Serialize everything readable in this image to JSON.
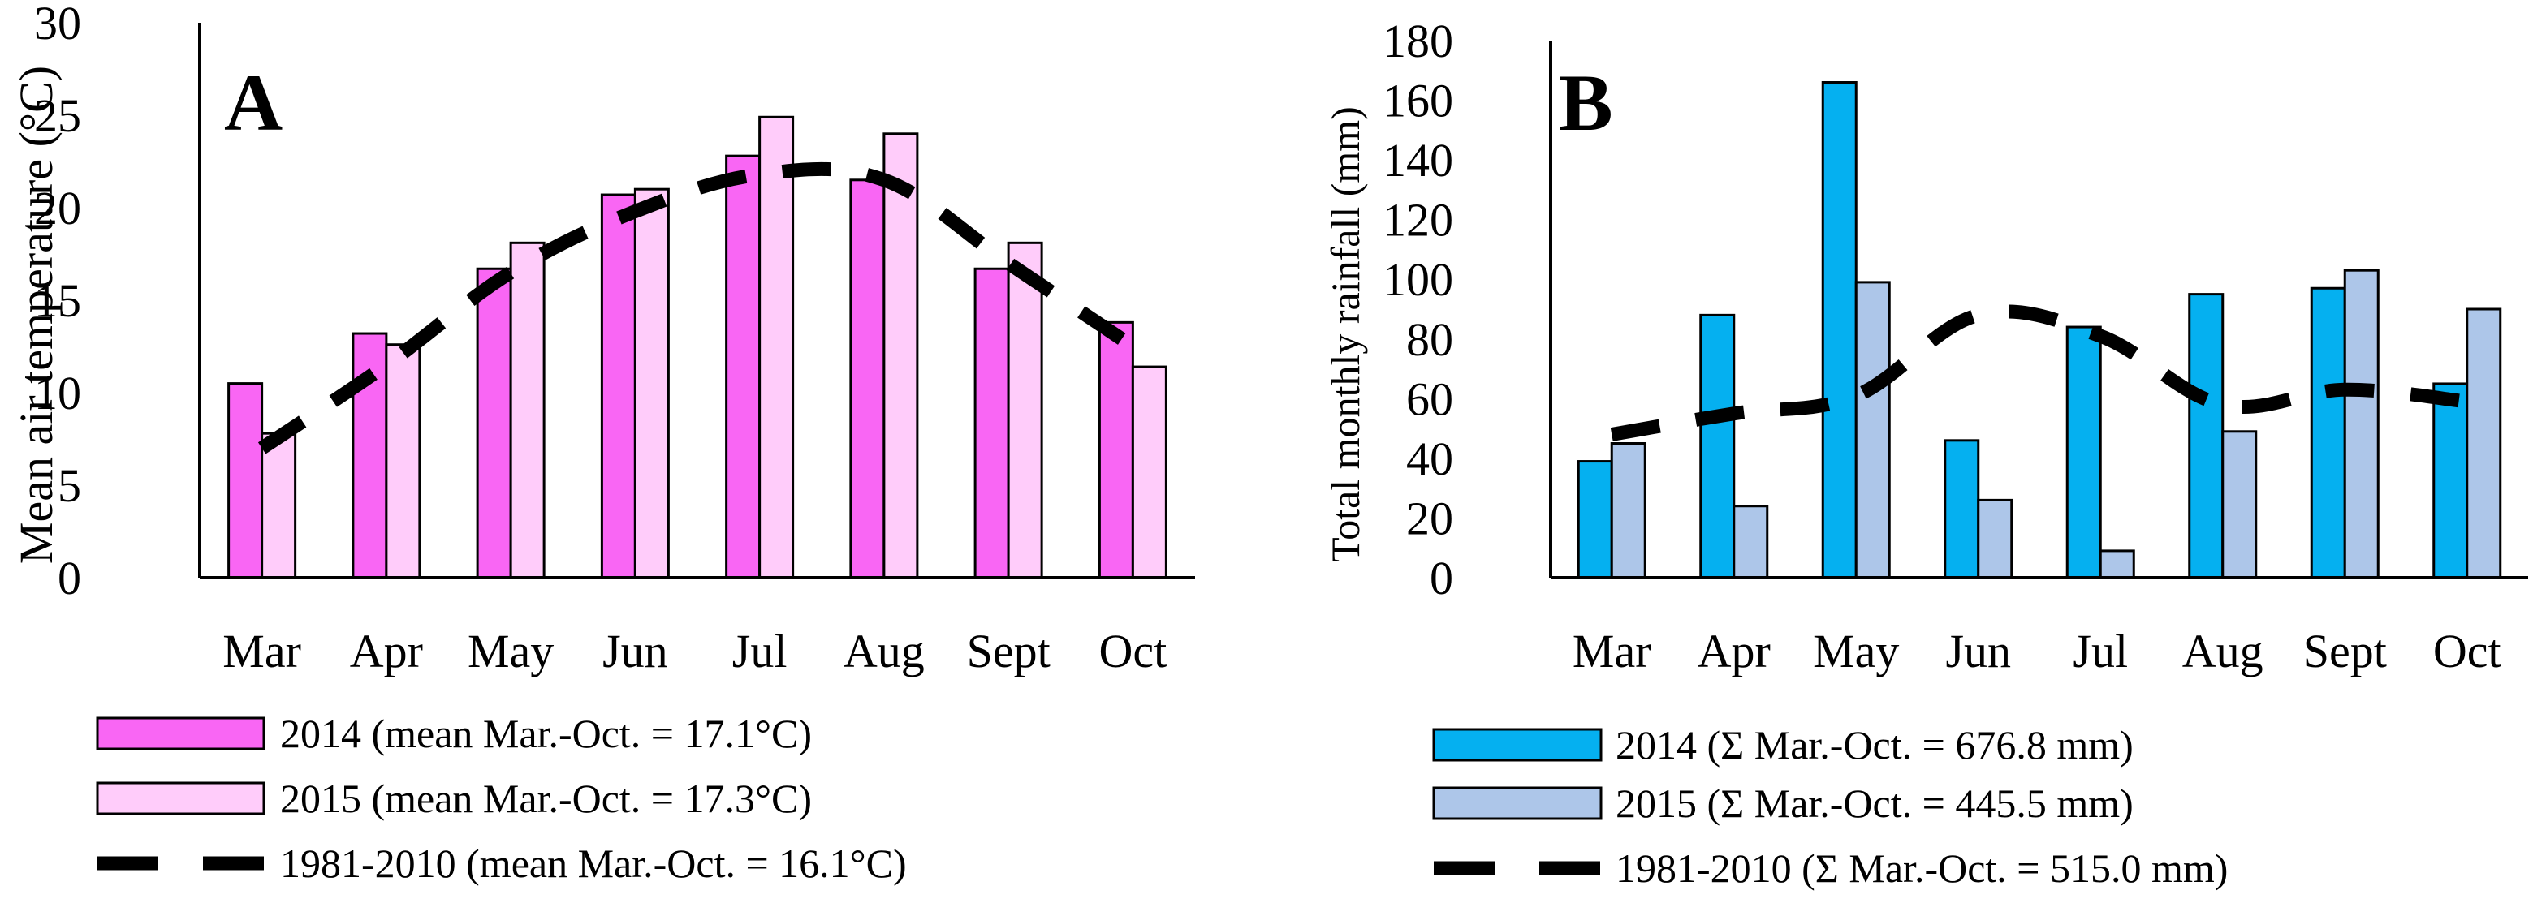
{
  "chart_data": [
    {
      "type": "bar",
      "panel": "A",
      "ylabel": "Mean air temperature (°C)",
      "ylim": [
        0,
        30
      ],
      "yticks": [
        "0",
        "5",
        "10",
        "15",
        "20",
        "25",
        "30"
      ],
      "categories": [
        "Mar",
        "Apr",
        "May",
        "Jun",
        "Jul",
        "Aug",
        "Sept",
        "Oct"
      ],
      "series": [
        {
          "name": "2014 (mean Mar.-Oct. = 17.1°C)",
          "kind": "bar",
          "color": "#f966f4",
          "values": [
            10.5,
            13.2,
            16.7,
            20.7,
            22.8,
            21.5,
            16.7,
            13.8
          ]
        },
        {
          "name": "2015 (mean Mar.-Oct. = 17.3°C)",
          "kind": "bar",
          "color": "#ffccfa",
          "values": [
            7.8,
            12.6,
            18.1,
            21.0,
            24.9,
            24.0,
            18.1,
            11.4
          ]
        },
        {
          "name": "1981-2010 (mean Mar.-Oct. = 16.1°C)",
          "kind": "line",
          "color": "#000000",
          "values": [
            7.0,
            11.5,
            16.5,
            19.8,
            21.8,
            21.5,
            17.0,
            12.5
          ]
        }
      ]
    },
    {
      "type": "bar",
      "panel": "B",
      "ylabel": "Total monthly rainfall (mm)",
      "ylim": [
        0,
        180
      ],
      "yticks": [
        "0",
        "20",
        "40",
        "60",
        "80",
        "100",
        "120",
        "140",
        "160",
        "180"
      ],
      "categories": [
        "Mar",
        "Apr",
        "May",
        "Jun",
        "Jul",
        "Aug",
        "Sept",
        "Oct"
      ],
      "series": [
        {
          "name": "2014 (Σ Mar.-Oct. = 676.8 mm)",
          "kind": "bar",
          "color": "#05b0f0",
          "values": [
            39,
            88,
            166,
            46,
            84,
            95,
            97,
            65
          ]
        },
        {
          "name": "2015 (Σ Mar.-Oct. = 445.5 mm)",
          "kind": "bar",
          "color": "#adc6e9",
          "values": [
            45,
            24,
            99,
            26,
            9,
            49,
            103,
            90
          ]
        },
        {
          "name": "1981-2010 (Σ Mar.-Oct. = 515.0 mm)",
          "kind": "line",
          "color": "#000000",
          "values": [
            48,
            55,
            61,
            88,
            81,
            58,
            63,
            59
          ]
        }
      ]
    }
  ]
}
